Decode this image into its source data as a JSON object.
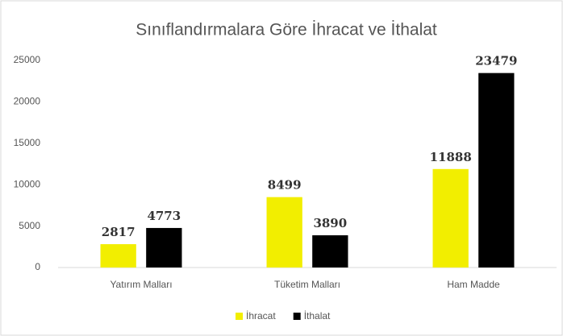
{
  "chart_data": {
    "type": "bar",
    "title": "Sınıflandırmalara Göre İhracat ve İthalat",
    "categories": [
      "Yatırım Malları",
      "Tüketim Malları",
      "Ham Madde"
    ],
    "series": [
      {
        "name": "İhracat",
        "color": "#f2ee00",
        "values": [
          2817,
          8499,
          11888
        ]
      },
      {
        "name": "İthalat",
        "color": "#000000",
        "values": [
          4773,
          3890,
          23479
        ]
      }
    ],
    "ylim": [
      0,
      25000
    ],
    "yticks": [
      0,
      5000,
      10000,
      15000,
      20000,
      25000
    ],
    "grid": false,
    "legend": "bottom"
  }
}
